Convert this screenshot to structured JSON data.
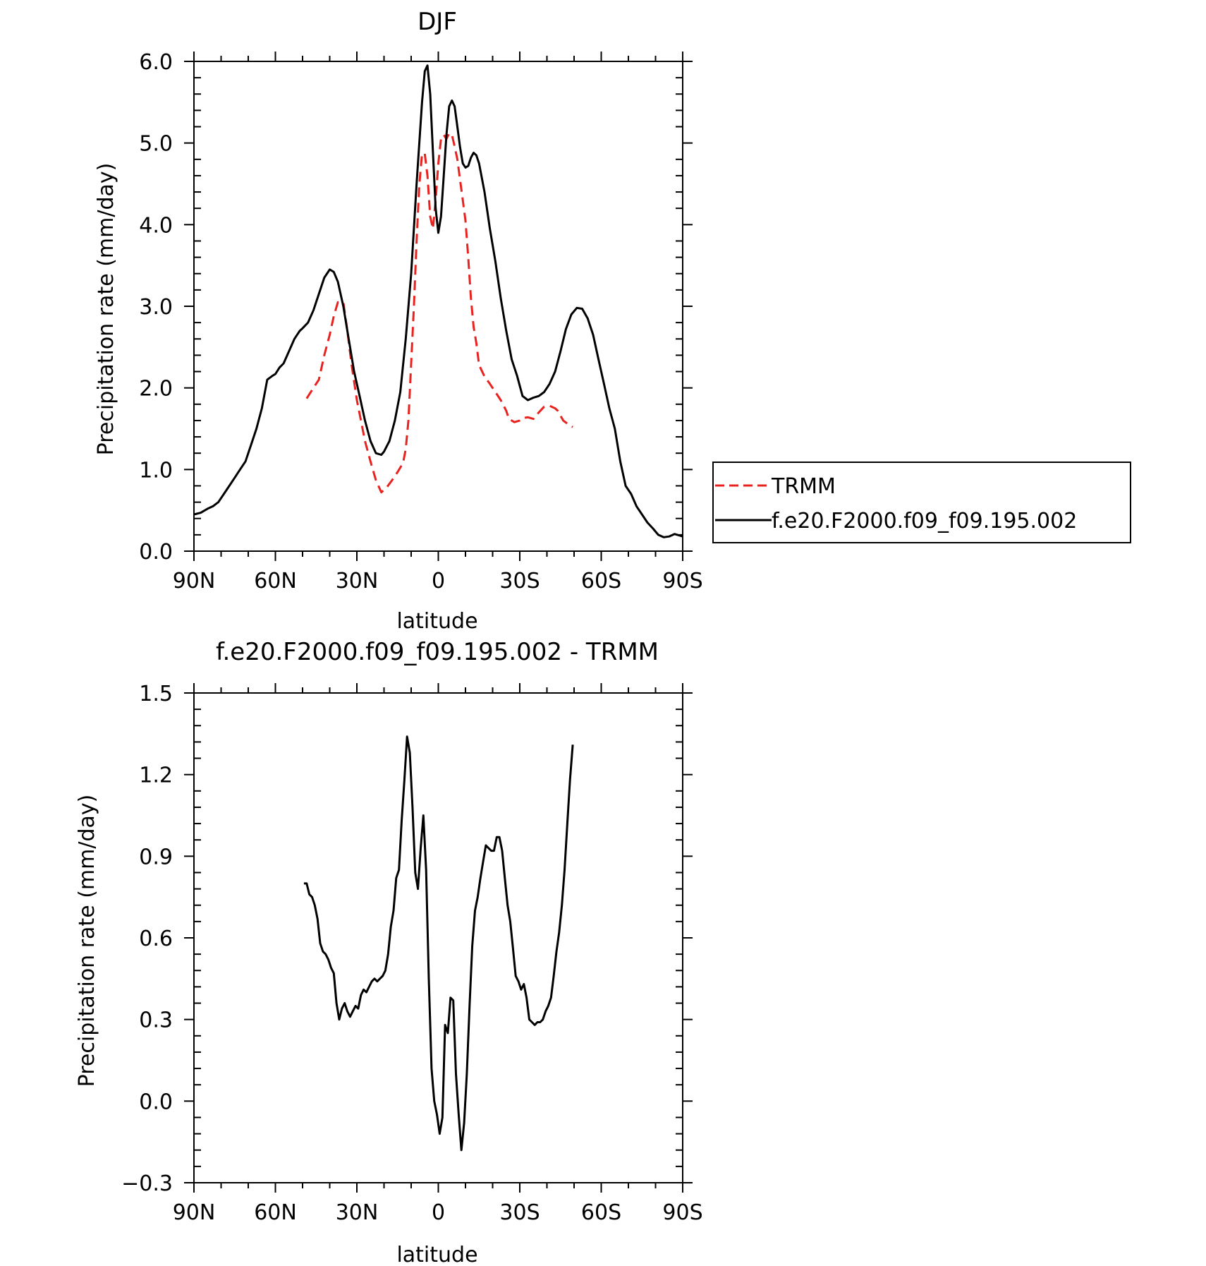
{
  "chart_data": [
    {
      "type": "line",
      "title": "DJF",
      "xlabel": "latitude",
      "ylabel": "Precipitation rate (mm/day)",
      "xlim": [
        90,
        -90
      ],
      "ylim": [
        0.0,
        6.0
      ],
      "xticks": [
        {
          "value": 90,
          "label": "90N"
        },
        {
          "value": 60,
          "label": "60N"
        },
        {
          "value": 30,
          "label": "30N"
        },
        {
          "value": 0,
          "label": "0"
        },
        {
          "value": -30,
          "label": "30S"
        },
        {
          "value": -60,
          "label": "60S"
        },
        {
          "value": -90,
          "label": "90S"
        }
      ],
      "yticks": [
        {
          "value": 0.0,
          "label": "0.0"
        },
        {
          "value": 1.0,
          "label": "1.0"
        },
        {
          "value": 2.0,
          "label": "2.0"
        },
        {
          "value": 3.0,
          "label": "3.0"
        },
        {
          "value": 4.0,
          "label": "4.0"
        },
        {
          "value": 5.0,
          "label": "5.0"
        },
        {
          "value": 6.0,
          "label": "6.0"
        }
      ],
      "legend_position": "right",
      "series": [
        {
          "name": "TRMM",
          "color": "#e8231f",
          "style": "dashed",
          "x": [
            48.5,
            46,
            44,
            42,
            40,
            38.5,
            37,
            35,
            33.5,
            32,
            30,
            28.5,
            27,
            25,
            23,
            21,
            19,
            17,
            15,
            13,
            12,
            11,
            10,
            9,
            8,
            7,
            6,
            5,
            4,
            3,
            2,
            1,
            0,
            -1,
            -2,
            -3,
            -4,
            -5,
            -6,
            -7,
            -8,
            -9,
            -10,
            -11,
            -12,
            -13,
            -14,
            -15,
            -17,
            -19,
            -21,
            -23,
            -25,
            -26,
            -28,
            -30,
            -31,
            -33,
            -35,
            -37,
            -39,
            -41,
            -43,
            -44,
            -46,
            -48,
            -49.5
          ],
          "y": [
            1.87,
            2.0,
            2.1,
            2.4,
            2.65,
            2.88,
            3.05,
            3.05,
            2.7,
            2.3,
            1.85,
            1.6,
            1.35,
            1.1,
            0.87,
            0.72,
            0.78,
            0.87,
            0.97,
            1.08,
            1.25,
            1.6,
            2.3,
            3.0,
            3.8,
            4.48,
            4.87,
            4.87,
            4.6,
            4.1,
            3.95,
            4.3,
            4.75,
            5.05,
            5.1,
            5.05,
            5.12,
            5.1,
            4.96,
            4.8,
            4.55,
            4.3,
            4.05,
            3.6,
            3.1,
            2.75,
            2.55,
            2.28,
            2.14,
            2.05,
            1.95,
            1.85,
            1.72,
            1.62,
            1.58,
            1.6,
            1.63,
            1.64,
            1.62,
            1.7,
            1.77,
            1.78,
            1.75,
            1.72,
            1.6,
            1.55,
            1.52
          ]
        },
        {
          "name": "f.e20.F2000.f09_f09.195.002",
          "color": "#000000",
          "style": "solid",
          "x": [
            90,
            87.5,
            85,
            83,
            81,
            79,
            77,
            75,
            73,
            71,
            69,
            67,
            65,
            63,
            61,
            60,
            58.5,
            57,
            55,
            53,
            51,
            50,
            48,
            46,
            44,
            42,
            40,
            38.5,
            37,
            35,
            33,
            31,
            29,
            27,
            25,
            23,
            21,
            20,
            18,
            16,
            14,
            12,
            10,
            8,
            6,
            5,
            4,
            3,
            2,
            1,
            0,
            -1,
            -2,
            -3,
            -4,
            -5,
            -6,
            -7,
            -8,
            -9,
            -10,
            -11,
            -12,
            -13,
            -14,
            -15,
            -17,
            -19,
            -21,
            -23,
            -25,
            -27,
            -29,
            -31,
            -33,
            -35,
            -37,
            -39,
            -41,
            -43,
            -45,
            -47,
            -49,
            -51,
            -53,
            -55,
            -57,
            -59,
            -61,
            -63,
            -65,
            -67,
            -69,
            -71,
            -73,
            -75,
            -77,
            -79,
            -81,
            -83,
            -85,
            -87,
            -90
          ],
          "y": [
            0.45,
            0.47,
            0.52,
            0.55,
            0.6,
            0.7,
            0.8,
            0.9,
            1.0,
            1.1,
            1.3,
            1.5,
            1.75,
            2.1,
            2.15,
            2.17,
            2.25,
            2.3,
            2.45,
            2.6,
            2.7,
            2.73,
            2.8,
            2.95,
            3.15,
            3.35,
            3.45,
            3.42,
            3.3,
            3.0,
            2.6,
            2.2,
            1.9,
            1.6,
            1.35,
            1.2,
            1.18,
            1.22,
            1.35,
            1.6,
            1.95,
            2.6,
            3.4,
            4.5,
            5.5,
            5.88,
            5.95,
            5.6,
            4.9,
            4.2,
            3.9,
            4.1,
            4.6,
            5.1,
            5.45,
            5.52,
            5.45,
            5.2,
            4.95,
            4.75,
            4.7,
            4.72,
            4.82,
            4.88,
            4.85,
            4.75,
            4.4,
            3.95,
            3.55,
            3.1,
            2.7,
            2.35,
            2.15,
            1.9,
            1.85,
            1.88,
            1.9,
            1.95,
            2.05,
            2.2,
            2.45,
            2.72,
            2.9,
            2.98,
            2.97,
            2.85,
            2.65,
            2.35,
            2.05,
            1.75,
            1.5,
            1.1,
            0.8,
            0.7,
            0.55,
            0.45,
            0.35,
            0.28,
            0.2,
            0.17,
            0.18,
            0.21,
            0.18
          ]
        }
      ]
    },
    {
      "type": "line",
      "title": "f.e20.F2000.f09_f09.195.002 - TRMM",
      "xlabel": "latitude",
      "ylabel": "Precipitation rate (mm/day)",
      "xlim": [
        90,
        -90
      ],
      "ylim": [
        -0.3,
        1.5
      ],
      "xticks": [
        {
          "value": 90,
          "label": "90N"
        },
        {
          "value": 60,
          "label": "60N"
        },
        {
          "value": 30,
          "label": "30N"
        },
        {
          "value": 0,
          "label": "0"
        },
        {
          "value": -30,
          "label": "30S"
        },
        {
          "value": -60,
          "label": "60S"
        },
        {
          "value": -90,
          "label": "90S"
        }
      ],
      "yticks": [
        {
          "value": -0.3,
          "label": "−0.3"
        },
        {
          "value": 0.0,
          "label": "0.0"
        },
        {
          "value": 0.3,
          "label": "0.3"
        },
        {
          "value": 0.6,
          "label": "0.6"
        },
        {
          "value": 0.9,
          "label": "0.9"
        },
        {
          "value": 1.2,
          "label": "1.2"
        },
        {
          "value": 1.5,
          "label": "1.5"
        }
      ],
      "series": [
        {
          "color": "#000000",
          "style": "solid",
          "x": [
            49.5,
            48.5,
            47.5,
            46.5,
            45.5,
            44.5,
            43.5,
            42.5,
            41.5,
            40.5,
            39.5,
            38.5,
            37.5,
            36.5,
            35.5,
            34.5,
            33.5,
            32.5,
            31.5,
            30.5,
            29.5,
            28.5,
            27.5,
            26.5,
            25.5,
            24.5,
            23.5,
            22.5,
            21.5,
            20.5,
            19.5,
            18.5,
            17.5,
            16.5,
            15.5,
            14.5,
            13.5,
            12.5,
            11.5,
            10.5,
            9.5,
            8.5,
            7.5,
            6.5,
            5.5,
            4.5,
            3.5,
            2.5,
            1.5,
            0.5,
            -0.5,
            -1.5,
            -2.5,
            -3.5,
            -4.5,
            -5.5,
            -6.5,
            -7.5,
            -8.5,
            -9.5,
            -10.5,
            -11.5,
            -12.5,
            -13.5,
            -14.5,
            -15.5,
            -16.5,
            -17.5,
            -18.5,
            -19.5,
            -20.5,
            -21.5,
            -22.5,
            -23.5,
            -24.5,
            -25.5,
            -26.5,
            -27.5,
            -28.5,
            -29.5,
            -30.5,
            -31.5,
            -32.5,
            -33.5,
            -34.5,
            -35.5,
            -36.5,
            -37.5,
            -38.5,
            -39.5,
            -40.5,
            -41.5,
            -42.5,
            -43.5,
            -44.5,
            -45.5,
            -46.5,
            -47.5,
            -48.5,
            -49.5
          ],
          "y": [
            0.8,
            0.8,
            0.76,
            0.75,
            0.72,
            0.67,
            0.58,
            0.55,
            0.54,
            0.52,
            0.49,
            0.47,
            0.36,
            0.3,
            0.34,
            0.36,
            0.33,
            0.31,
            0.33,
            0.35,
            0.34,
            0.39,
            0.41,
            0.4,
            0.42,
            0.44,
            0.45,
            0.44,
            0.45,
            0.46,
            0.48,
            0.54,
            0.64,
            0.7,
            0.82,
            0.85,
            1.03,
            1.18,
            1.34,
            1.28,
            1.08,
            0.84,
            0.78,
            0.93,
            1.05,
            0.85,
            0.45,
            0.12,
            0.0,
            -0.05,
            -0.12,
            -0.06,
            0.28,
            0.25,
            0.38,
            0.37,
            0.1,
            -0.05,
            -0.18,
            -0.08,
            0.1,
            0.35,
            0.57,
            0.7,
            0.75,
            0.82,
            0.88,
            0.94,
            0.93,
            0.92,
            0.92,
            0.97,
            0.97,
            0.92,
            0.82,
            0.72,
            0.66,
            0.56,
            0.46,
            0.44,
            0.41,
            0.43,
            0.38,
            0.3,
            0.29,
            0.28,
            0.29,
            0.29,
            0.3,
            0.33,
            0.35,
            0.38,
            0.46,
            0.55,
            0.62,
            0.72,
            0.85,
            1.02,
            1.18,
            1.31
          ]
        }
      ]
    }
  ]
}
